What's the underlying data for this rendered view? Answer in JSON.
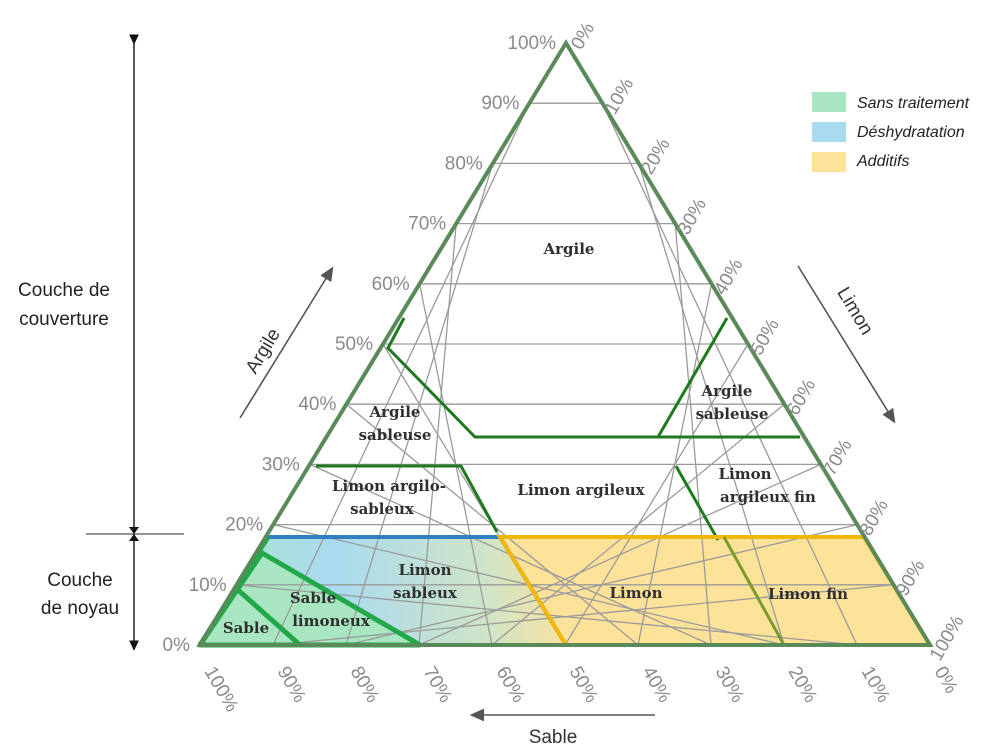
{
  "side_labels": {
    "cover_line1": "Couche de",
    "cover_line2": "couverture",
    "core_line1": "Couche",
    "core_line2": "de noyau"
  },
  "axes": {
    "argile_name": "Argile",
    "limon_name": "Limon",
    "sable_name": "Sable",
    "argile_ticks": [
      "0%",
      "10%",
      "20%",
      "30%",
      "40%",
      "50%",
      "60%",
      "70%",
      "80%",
      "90%",
      "100%"
    ],
    "limon_ticks": [
      "0%",
      "10%",
      "20%",
      "30%",
      "40%",
      "50%",
      "60%",
      "70%",
      "80%",
      "90%",
      "100%"
    ],
    "sable_ticks": [
      "100%",
      "90%",
      "80%",
      "70%",
      "60%",
      "50%",
      "40%",
      "30%",
      "20%",
      "10%",
      "0%"
    ]
  },
  "regions": {
    "argile": [
      "Argile"
    ],
    "argile_sableuse_left": [
      "Argile",
      "sableuse"
    ],
    "argile_sableuse_right": [
      "Argile",
      "sableuse"
    ],
    "limon_argilo_sableux": [
      "Limon argilo-",
      "sableux"
    ],
    "limon_argileux": [
      "Limon argileux"
    ],
    "limon_argileux_fin": [
      "Limon",
      "argileux fin"
    ],
    "limon_sableux": [
      "Limon",
      "sableux"
    ],
    "sable_limoneux": [
      "Sable",
      "limoneux"
    ],
    "sable": [
      "Sable"
    ],
    "limon": [
      "Limon"
    ],
    "limon_fin": [
      "Limon fin"
    ]
  },
  "legend": [
    {
      "label": "Sans traitement",
      "color": "#a8e6c2"
    },
    {
      "label": "Déshydratation",
      "color": "#a9daf0"
    },
    {
      "label": "Additifs",
      "color": "#fde29a"
    }
  ],
  "colors": {
    "triangle_border": "#5a8a5a",
    "grid": "#9a9a9a",
    "class_boundary": "#1f7a1f",
    "green_outline": "#22a84a",
    "blue_outline": "#2f7fc1",
    "yellow_outline": "#f2b705"
  }
}
